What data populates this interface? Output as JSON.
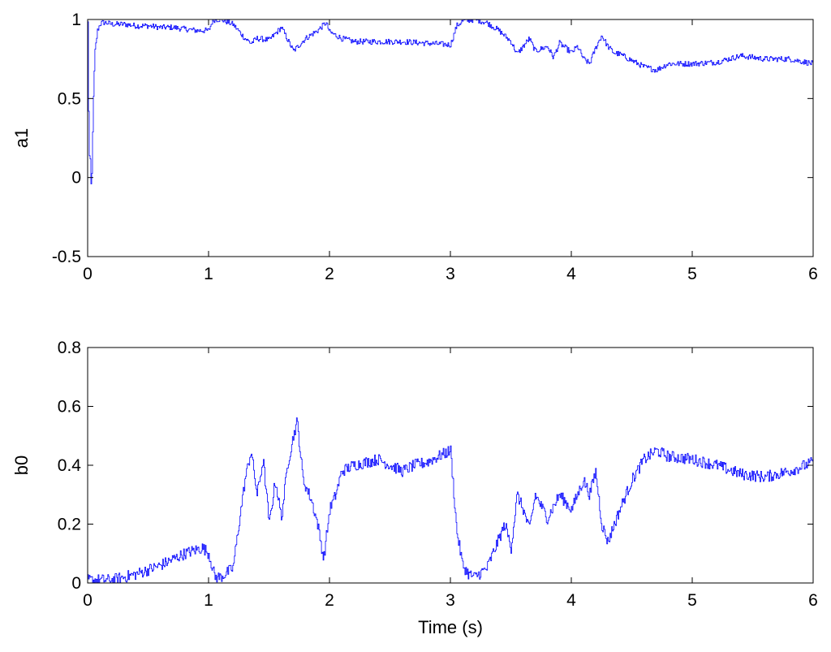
{
  "chart_data": [
    {
      "type": "line",
      "xlabel": "",
      "ylabel": "a1",
      "xlim": [
        0,
        6
      ],
      "ylim": [
        -0.5,
        1
      ],
      "xticks": [
        "0",
        "1",
        "2",
        "3",
        "4",
        "5",
        "6"
      ],
      "yticks": [
        "-0.5",
        "0",
        "0.5",
        "1"
      ],
      "grid": false,
      "line_color": "#0000ff",
      "series": [
        {
          "x": [
            0,
            0.01,
            0.02,
            0.03,
            0.04,
            0.05,
            0.06,
            0.08,
            0.1,
            0.12,
            0.15,
            0.2,
            0.3,
            0.4,
            0.5,
            0.6,
            0.7,
            0.8,
            0.9,
            1.0,
            1.03,
            1.05,
            1.1,
            1.2,
            1.3,
            1.35,
            1.4,
            1.5,
            1.6,
            1.7,
            1.8,
            1.9,
            1.97,
            2.0,
            2.1,
            2.2,
            2.4,
            2.6,
            2.8,
            3.0,
            3.05,
            3.1,
            3.2,
            3.3,
            3.4,
            3.5,
            3.55,
            3.6,
            3.65,
            3.7,
            3.8,
            3.85,
            3.9,
            4.0,
            4.05,
            4.1,
            4.15,
            4.2,
            4.25,
            4.3,
            4.35,
            4.4,
            4.5,
            4.6,
            4.7,
            4.8,
            5.0,
            5.2,
            5.4,
            5.6,
            5.8,
            6.0
          ],
          "y": [
            0.98,
            0.15,
            0.1,
            -0.12,
            0.3,
            0.6,
            0.8,
            0.93,
            0.97,
            0.98,
            0.98,
            0.97,
            0.97,
            0.96,
            0.96,
            0.95,
            0.95,
            0.94,
            0.93,
            0.93,
            0.99,
            1.0,
            1.0,
            0.97,
            0.88,
            0.85,
            0.88,
            0.87,
            0.95,
            0.8,
            0.88,
            0.93,
            0.98,
            0.92,
            0.88,
            0.86,
            0.86,
            0.86,
            0.85,
            0.84,
            0.96,
            0.99,
            1.0,
            0.98,
            0.93,
            0.86,
            0.78,
            0.83,
            0.88,
            0.8,
            0.83,
            0.76,
            0.85,
            0.79,
            0.83,
            0.75,
            0.72,
            0.82,
            0.9,
            0.83,
            0.79,
            0.78,
            0.74,
            0.7,
            0.68,
            0.72,
            0.72,
            0.73,
            0.77,
            0.75,
            0.75,
            0.72
          ]
        }
      ]
    },
    {
      "type": "line",
      "xlabel": "Time (s)",
      "ylabel": "b0",
      "xlim": [
        0,
        6
      ],
      "ylim": [
        0,
        0.8
      ],
      "xticks": [
        "0",
        "1",
        "2",
        "3",
        "4",
        "5",
        "6"
      ],
      "yticks": [
        "0",
        "0.2",
        "0.4",
        "0.6",
        "0.8"
      ],
      "grid": false,
      "line_color": "#0000ff",
      "series": [
        {
          "x": [
            0,
            0.2,
            0.4,
            0.6,
            0.8,
            0.95,
            1.0,
            1.05,
            1.1,
            1.2,
            1.25,
            1.3,
            1.35,
            1.4,
            1.45,
            1.5,
            1.55,
            1.6,
            1.65,
            1.7,
            1.73,
            1.78,
            1.85,
            1.9,
            1.95,
            2.0,
            2.05,
            2.1,
            2.2,
            2.4,
            2.5,
            2.6,
            2.7,
            2.8,
            3.0,
            3.05,
            3.1,
            3.15,
            3.2,
            3.3,
            3.4,
            3.45,
            3.5,
            3.55,
            3.6,
            3.65,
            3.7,
            3.8,
            3.9,
            4.0,
            4.1,
            4.15,
            4.2,
            4.25,
            4.3,
            4.4,
            4.5,
            4.6,
            4.7,
            4.8,
            5.0,
            5.2,
            5.4,
            5.6,
            5.8,
            6.0
          ],
          "y": [
            0.01,
            0.01,
            0.03,
            0.06,
            0.1,
            0.12,
            0.1,
            0.02,
            0.02,
            0.05,
            0.2,
            0.35,
            0.45,
            0.3,
            0.42,
            0.2,
            0.35,
            0.22,
            0.4,
            0.5,
            0.55,
            0.35,
            0.28,
            0.2,
            0.08,
            0.25,
            0.3,
            0.38,
            0.4,
            0.42,
            0.4,
            0.38,
            0.4,
            0.41,
            0.45,
            0.18,
            0.06,
            0.03,
            0.02,
            0.05,
            0.15,
            0.2,
            0.12,
            0.3,
            0.25,
            0.18,
            0.3,
            0.22,
            0.3,
            0.25,
            0.35,
            0.3,
            0.38,
            0.2,
            0.14,
            0.25,
            0.35,
            0.42,
            0.45,
            0.43,
            0.42,
            0.4,
            0.37,
            0.36,
            0.38,
            0.41
          ]
        }
      ]
    }
  ]
}
